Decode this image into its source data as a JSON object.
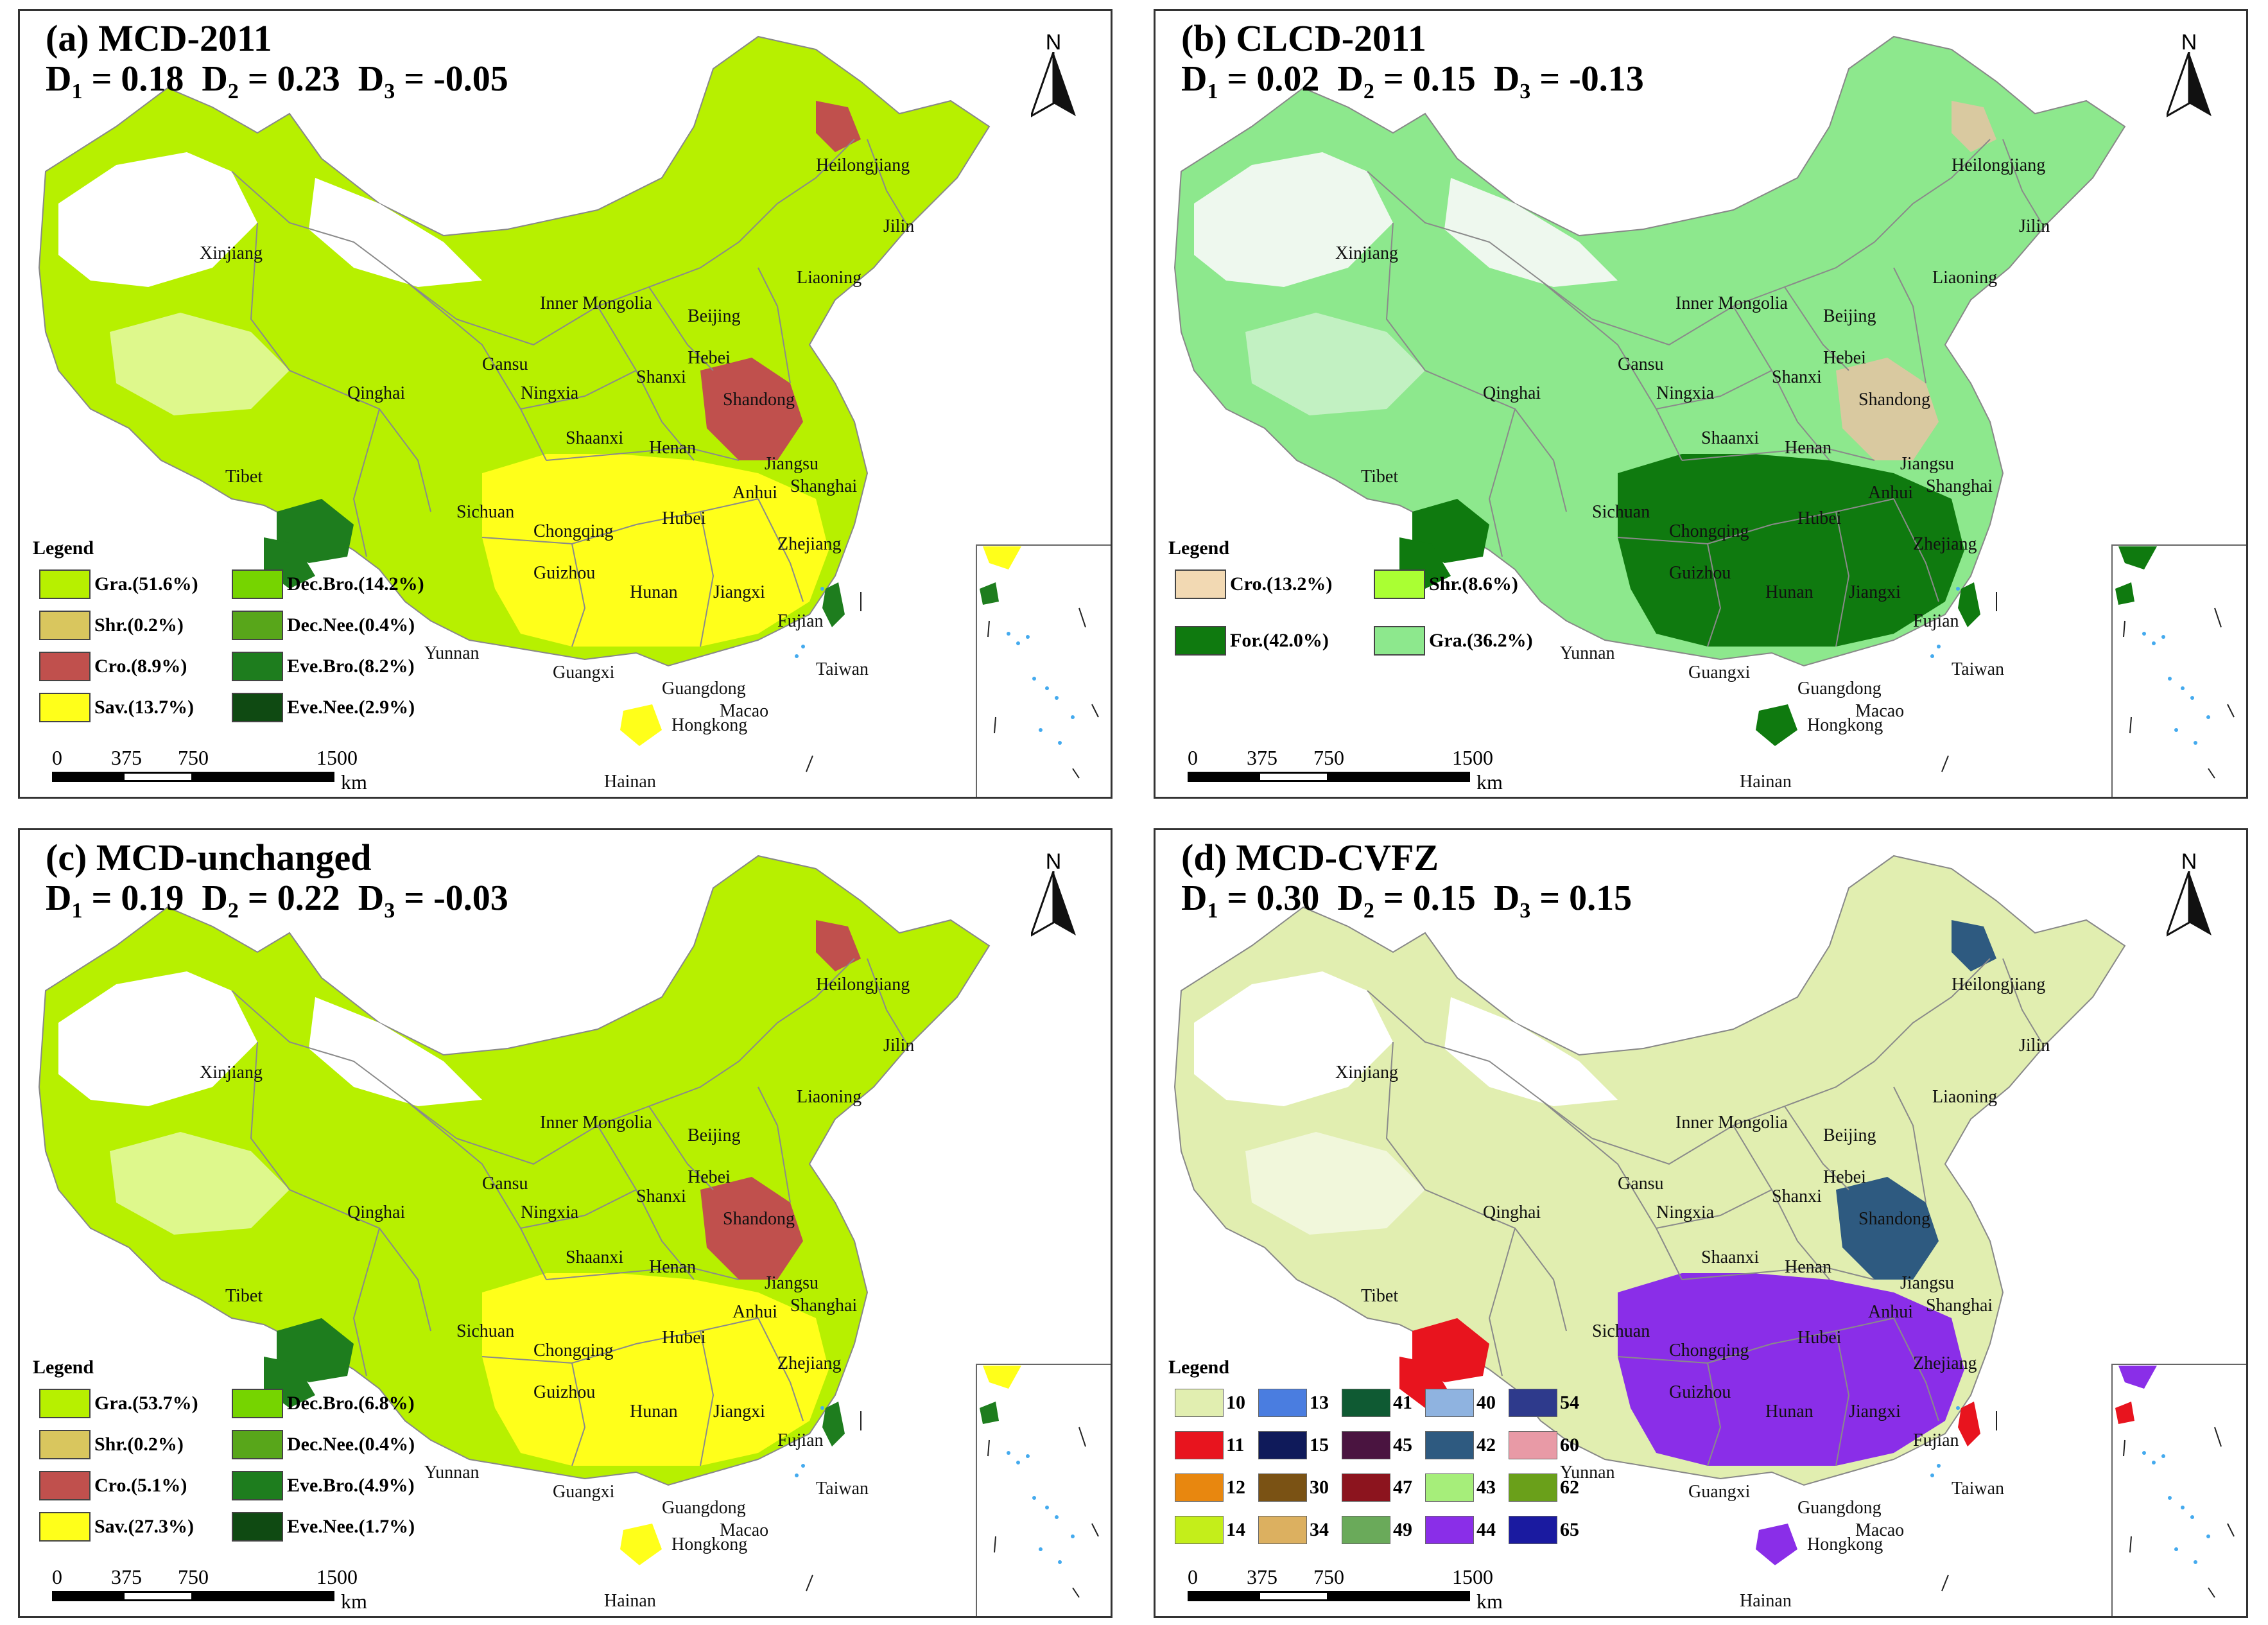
{
  "panels": [
    {
      "title": "(a) MCD-2011",
      "stats": {
        "d1_label": "D",
        "d1_sub": "1",
        "d1_value": " = 0.18",
        "d2_label": "D",
        "d2_sub": "2",
        "d2_value": " = 0.23",
        "d3_label": "D",
        "d3_sub": "3",
        "d3_value": " = -0.05"
      },
      "legend_title": "Legend",
      "legend": [
        {
          "label": "Gra.(51.6%)",
          "color": "#b7f000"
        },
        {
          "label": "Dec.Bro.(14.2%)",
          "color": "#76d400"
        },
        {
          "label": "Shr.(0.2%)",
          "color": "#d9c65e"
        },
        {
          "label": "Dec.Nee.(0.4%)",
          "color": "#58a61a"
        },
        {
          "label": "Cro.(8.9%)",
          "color": "#c0504d"
        },
        {
          "label": "Eve.Bro.(8.2%)",
          "color": "#1e7d1e"
        },
        {
          "label": "Sav.(13.7%)",
          "color": "#ffff1a"
        },
        {
          "label": "Eve.Nee.(2.9%)",
          "color": "#0f4a12"
        }
      ]
    },
    {
      "title": "(b) CLCD-2011",
      "stats": {
        "d1_label": "D",
        "d1_sub": "1",
        "d1_value": " = 0.02",
        "d2_label": "D",
        "d2_sub": "2",
        "d2_value": " = 0.15",
        "d3_label": "D",
        "d3_sub": "3",
        "d3_value": " = -0.13"
      },
      "legend_title": "Legend",
      "legend": [
        {
          "label": "Cro.(13.2%)",
          "color": "#f2d9b3"
        },
        {
          "label": "Shr.(8.6%)",
          "color": "#aaff33"
        },
        {
          "label": "For.(42.0%)",
          "color": "#0f7a0f"
        },
        {
          "label": "Gra.(36.2%)",
          "color": "#8de88d"
        }
      ]
    },
    {
      "title": "(c) MCD-unchanged",
      "stats": {
        "d1_label": "D",
        "d1_sub": "1",
        "d1_value": " = 0.19",
        "d2_label": "D",
        "d2_sub": "2",
        "d2_value": " = 0.22",
        "d3_label": "D",
        "d3_sub": "3",
        "d3_value": " = -0.03"
      },
      "legend_title": "Legend",
      "legend": [
        {
          "label": "Gra.(53.7%)",
          "color": "#b7f000"
        },
        {
          "label": "Dec.Bro.(6.8%)",
          "color": "#76d400"
        },
        {
          "label": "Shr.(0.2%)",
          "color": "#d9c65e"
        },
        {
          "label": "Dec.Nee.(0.4%)",
          "color": "#58a61a"
        },
        {
          "label": "Cro.(5.1%)",
          "color": "#c0504d"
        },
        {
          "label": "Eve.Bro.(4.9%)",
          "color": "#1e7d1e"
        },
        {
          "label": "Sav.(27.3%)",
          "color": "#ffff1a"
        },
        {
          "label": "Eve.Nee.(1.7%)",
          "color": "#0f4a12"
        }
      ]
    },
    {
      "title": "(d) MCD-CVFZ",
      "stats": {
        "d1_label": "D",
        "d1_sub": "1",
        "d1_value": " = 0.30",
        "d2_label": "D",
        "d2_sub": "2",
        "d2_value": " = 0.15",
        "d3_label": "D",
        "d3_sub": "3",
        "d3_value": " = 0.15"
      },
      "legend_title": "Legend",
      "legend": [
        {
          "label": "10",
          "color": "#e1eeb0"
        },
        {
          "label": "13",
          "color": "#4a7de0"
        },
        {
          "label": "41",
          "color": "#0f5a33"
        },
        {
          "label": "40",
          "color": "#8fb3e0"
        },
        {
          "label": "54",
          "color": "#2e3a8c"
        },
        {
          "label": "11",
          "color": "#e8141e"
        },
        {
          "label": "15",
          "color": "#0f1a5a"
        },
        {
          "label": "45",
          "color": "#4a1440"
        },
        {
          "label": "42",
          "color": "#2e5a80"
        },
        {
          "label": "60",
          "color": "#e89aa6"
        },
        {
          "label": "12",
          "color": "#e8870f"
        },
        {
          "label": "30",
          "color": "#7a5214"
        },
        {
          "label": "47",
          "color": "#8c141e"
        },
        {
          "label": "43",
          "color": "#a6ee7a"
        },
        {
          "label": "62",
          "color": "#6aa01a"
        },
        {
          "label": "14",
          "color": "#c4ee1a"
        },
        {
          "label": "34",
          "color": "#dcb060"
        },
        {
          "label": "49",
          "color": "#6aaa5a"
        },
        {
          "label": "44",
          "color": "#8a2ee8"
        },
        {
          "label": "65",
          "color": "#1a1aa0"
        }
      ]
    }
  ],
  "north_label": "N",
  "scale": {
    "t0": "0",
    "t1": "375",
    "t2": "750",
    "t3": "1500",
    "unit": "km"
  },
  "provinces": {
    "xinjiang": "Xinjiang",
    "heilongjiang": "Heilongjiang",
    "jilin": "Jilin",
    "liaoning": "Liaoning",
    "inner_mongolia": "Inner Mongolia",
    "beijing": "Beijing",
    "hebei": "Hebei",
    "gansu": "Gansu",
    "qinghai": "Qinghai",
    "ningxia": "Ningxia",
    "shanxi": "Shanxi",
    "shandong": "Shandong",
    "shaanxi": "Shaanxi",
    "henan": "Henan",
    "jiangsu": "Jiangsu",
    "shanghai": "Shanghai",
    "anhui": "Anhui",
    "tibet": "Tibet",
    "sichuan": "Sichuan",
    "hubei": "Hubei",
    "chongqing": "Chongqing",
    "zhejiang": "Zhejiang",
    "hunan": "Hunan",
    "jiangxi": "Jiangxi",
    "guizhou": "Guizhou",
    "fujian": "Fujian",
    "yunnan": "Yunnan",
    "taiwan": "Taiwan",
    "guangxi": "Guangxi",
    "guangdong": "Guangdong",
    "macao": "Macao",
    "hongkong": "Hongkong",
    "hainan": "Hainan"
  },
  "map_colors": {
    "a": {
      "base": "#b7f000",
      "south": "#ffff1a",
      "east": "#c0504d",
      "forest": "#1e7d1e",
      "west": "#ffffff"
    },
    "b": {
      "base": "#8de88d",
      "south": "#0f7a0f",
      "east": "#d9c9a0",
      "forest": "#0f7a0f",
      "west": "#eef8ee"
    },
    "c": {
      "base": "#b7f000",
      "south": "#ffff1a",
      "east": "#c0504d",
      "forest": "#1e7d1e",
      "west": "#ffffff"
    },
    "d": {
      "base": "#e1eeb0",
      "south": "#8a2ee8",
      "east": "#2e5a80",
      "forest": "#e8141e",
      "west": "#ffffff"
    }
  }
}
